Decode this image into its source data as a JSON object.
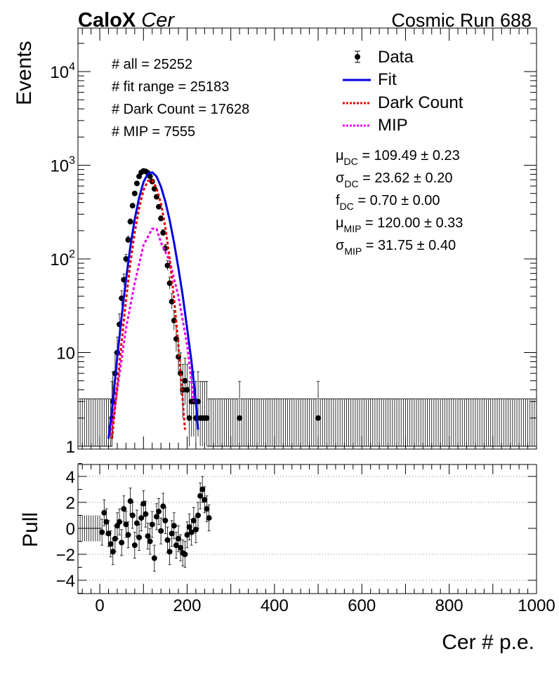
{
  "header": {
    "brand": "CaloX",
    "brand_italic": "Cer",
    "run_label": "Cosmic Run 688"
  },
  "stats": {
    "all": "# all = 25252",
    "fit_range": "# fit range = 25183",
    "dark_count": "# Dark Count = 17628",
    "mip": "# MIP = 7555"
  },
  "legend": {
    "data": "Data",
    "fit": "Fit",
    "dark": "Dark Count",
    "mip": "MIP"
  },
  "fit_params": [
    {
      "sym": "μ",
      "sub": "DC",
      "text": " = 109.49 ± 0.23"
    },
    {
      "sym": "σ",
      "sub": "DC",
      "text": " = 23.62 ± 0.20"
    },
    {
      "sym": "f",
      "sub": "DC",
      "text": " = 0.70 ± 0.00"
    },
    {
      "sym": "μ",
      "sub": "MIP",
      "text": " = 120.00 ± 0.33"
    },
    {
      "sym": "σ",
      "sub": "MIP",
      "text": " = 31.75 ± 0.40"
    }
  ],
  "colors": {
    "data": "#000000",
    "fit": "#0000dd",
    "dark": "#dd0000",
    "mip": "#ee00ee"
  },
  "chart_data": [
    {
      "type": "scatter",
      "panel": "main",
      "ylabel": "Events",
      "yscale": "log",
      "ylim": [
        1,
        25000
      ],
      "xlim": [
        -50,
        1000
      ],
      "y_ticks": [
        "1",
        "10",
        "10^2",
        "10^3",
        "10^4"
      ],
      "series": [
        {
          "name": "Data",
          "style": "points",
          "x": [
            15,
            20,
            25,
            28,
            30,
            35,
            40,
            45,
            50,
            55,
            60,
            65,
            70,
            75,
            80,
            85,
            90,
            95,
            100,
            105,
            110,
            115,
            120,
            125,
            130,
            135,
            140,
            145,
            150,
            155,
            160,
            165,
            170,
            175,
            180,
            185,
            190,
            195,
            200,
            205,
            210,
            215,
            220,
            225,
            230,
            235,
            240,
            245,
            250,
            255,
            260,
            265,
            270,
            275,
            280,
            290,
            300,
            310,
            320,
            330,
            380,
            400,
            420,
            440,
            490,
            500,
            540,
            560,
            620,
            680,
            700,
            780,
            980
          ],
          "y": [
            1,
            1,
            1,
            2,
            3,
            6,
            10,
            20,
            38,
            60,
            100,
            160,
            250,
            370,
            500,
            640,
            760,
            840,
            870,
            860,
            830,
            760,
            670,
            560,
            460,
            360,
            270,
            190,
            130,
            85,
            55,
            35,
            22,
            14,
            9,
            6,
            4,
            5,
            4,
            2,
            3,
            3,
            2,
            3,
            2,
            2,
            2,
            2,
            1,
            1,
            1,
            1,
            1,
            1,
            1,
            1,
            1,
            1,
            2,
            1,
            1,
            1,
            1,
            1,
            1,
            2,
            1,
            1,
            1,
            1,
            1,
            1,
            1
          ]
        },
        {
          "name": "Fit",
          "style": "line",
          "x": [
            20,
            30,
            40,
            50,
            60,
            70,
            80,
            90,
            100,
            110,
            120,
            130,
            140,
            150,
            160,
            170,
            180,
            190,
            200,
            210,
            220,
            225
          ],
          "y": [
            1.2,
            3,
            9,
            24,
            60,
            135,
            265,
            450,
            660,
            810,
            840,
            760,
            590,
            410,
            260,
            150,
            80,
            40,
            18,
            8,
            3,
            1.5
          ]
        },
        {
          "name": "Dark Count",
          "style": "dashed",
          "x": [
            28,
            40,
            50,
            60,
            70,
            80,
            90,
            100,
            110,
            120,
            130,
            140,
            150,
            160,
            170,
            180,
            190,
            195
          ],
          "y": [
            1.2,
            4.5,
            13,
            36,
            90,
            190,
            350,
            540,
            680,
            690,
            570,
            390,
            220,
            100,
            38,
            12,
            3,
            1.5
          ]
        },
        {
          "name": "MIP",
          "style": "dashed",
          "x": [
            25,
            40,
            60,
            80,
            100,
            120,
            130,
            140,
            160,
            180,
            200,
            215
          ],
          "y": [
            1.3,
            4,
            18,
            55,
            140,
            210,
            210,
            150,
            95,
            40,
            12,
            3
          ]
        }
      ]
    },
    {
      "type": "scatter",
      "panel": "pull",
      "xlabel": "Cer # p.e.",
      "ylabel": "Pull",
      "xlim": [
        -50,
        1000
      ],
      "ylim": [
        -5,
        5
      ],
      "x_ticks": [
        0,
        200,
        400,
        600,
        800,
        1000
      ],
      "y_ticks": [
        -4,
        -2,
        0,
        2,
        4
      ],
      "grid": "horizontal dotted at -4, -2, 2, 4",
      "series": [
        {
          "name": "Pull",
          "x": [
            -45,
            -40,
            -35,
            -30,
            -25,
            -20,
            -15,
            -10,
            -5,
            0,
            5,
            10,
            15,
            20,
            25,
            30,
            35,
            40,
            45,
            50,
            55,
            60,
            65,
            70,
            75,
            80,
            85,
            90,
            95,
            100,
            105,
            110,
            115,
            120,
            125,
            130,
            135,
            140,
            145,
            150,
            155,
            160,
            165,
            170,
            175,
            180,
            185,
            190,
            195,
            200,
            205,
            210,
            215,
            220,
            225,
            230,
            235,
            240,
            245,
            250
          ],
          "y": [
            0,
            0,
            0,
            0,
            0,
            0,
            0,
            0,
            0,
            0,
            -0.3,
            1.2,
            0.5,
            -0.4,
            -1.2,
            -1.8,
            -0.8,
            0.2,
            0.5,
            -1.1,
            1.5,
            0.3,
            -0.5,
            2.1,
            1.0,
            -1.3,
            0.4,
            -0.7,
            0.8,
            1.9,
            1.1,
            -0.6,
            -1.0,
            0.3,
            -2.3,
            0.9,
            1.3,
            -0.2,
            1.7,
            0.6,
            -0.9,
            -1.8,
            -0.4,
            0.2,
            -1.3,
            -0.8,
            -1.5,
            -1.9,
            -2.0,
            -0.5,
            0.1,
            -0.3,
            0.6,
            -0.1,
            1.0,
            2.5,
            3.0,
            2.2,
            1.5,
            0.8
          ]
        }
      ]
    }
  ]
}
